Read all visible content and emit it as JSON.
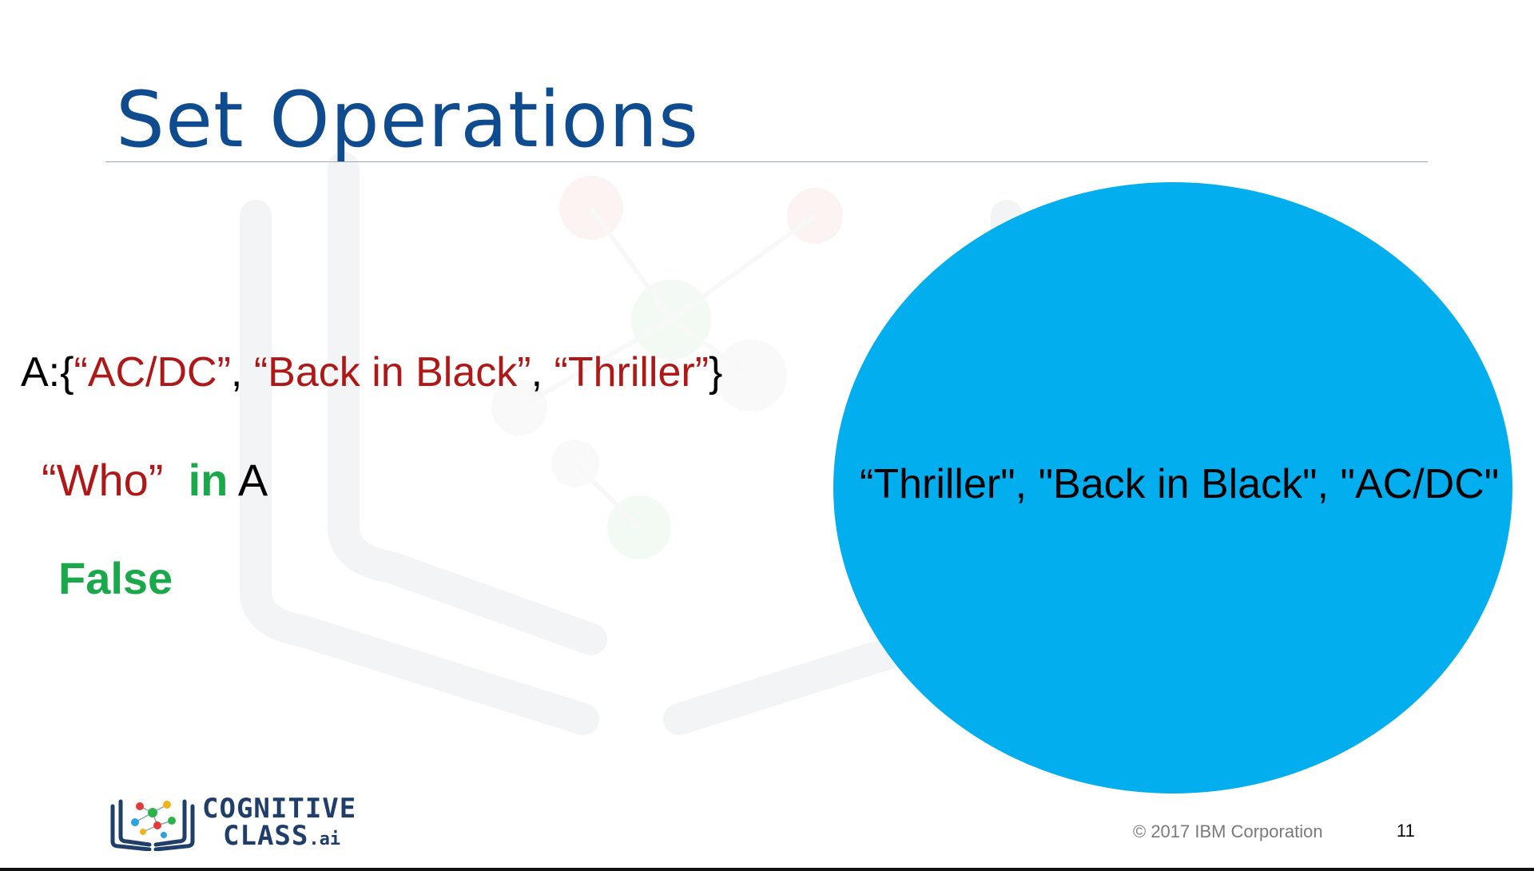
{
  "slide": {
    "title": "Set Operations",
    "set_definition": {
      "prefix": "A:{",
      "item1": "“AC/DC”",
      "sep1": ", ",
      "item2": "“Back in Black”",
      "sep2": ", ",
      "item3": "“Thriller”",
      "suffix": "}"
    },
    "query": {
      "value": "“Who”",
      "operator": "in",
      "set_name": "A"
    },
    "result": "False",
    "venn": {
      "label": "“Thriller\", \"Back in Black\", \"AC/DC\"",
      "color": "#02aeed"
    }
  },
  "footer": {
    "logo": {
      "line1": "COGNITIVE",
      "line2": "CLASS",
      "suffix": ".ai"
    },
    "copyright": "© 2017 IBM Corporation",
    "page_number": "11"
  },
  "colors": {
    "title": "#0f4c8f",
    "string_red": "#b01818",
    "keyword_green": "#19a84a",
    "venn_blue": "#02aeed"
  }
}
